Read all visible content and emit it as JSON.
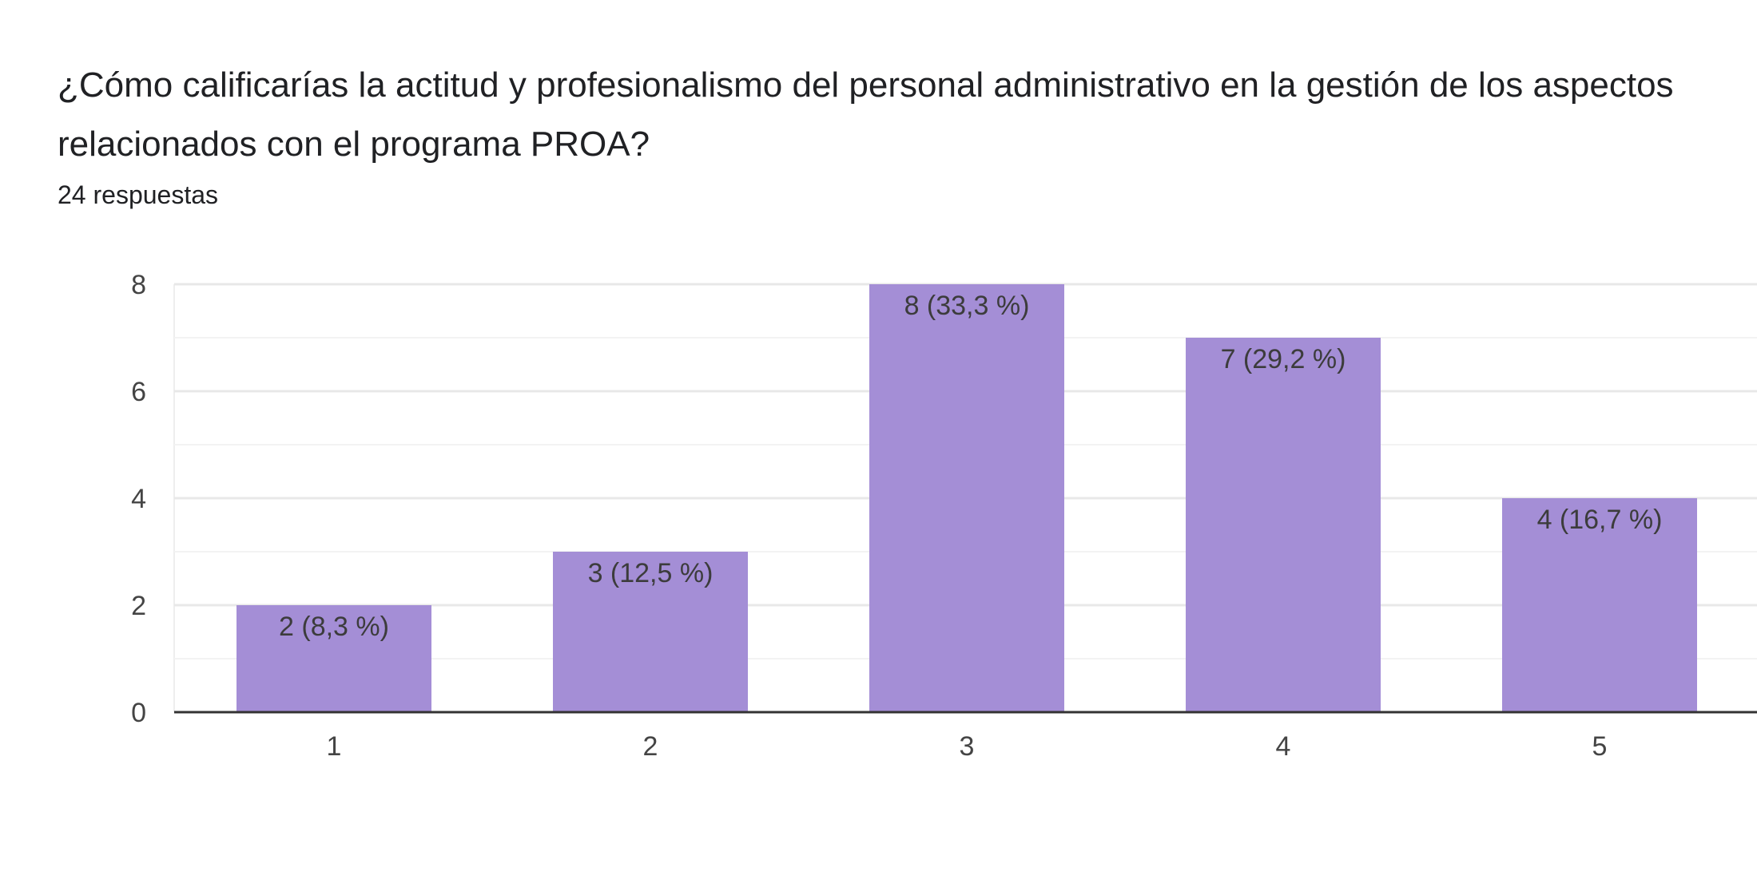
{
  "question": {
    "title": "¿Cómo calificarías la actitud y profesionalismo del personal administrativo en la gestión de los aspectos relacionados con el programa PROA?",
    "responses": "24 respuestas"
  },
  "chart_data": {
    "type": "bar",
    "categories": [
      "1",
      "2",
      "3",
      "4",
      "5"
    ],
    "values": [
      2,
      3,
      8,
      7,
      4
    ],
    "data_labels": [
      "2 (8,3 %)",
      "3 (12,5 %)",
      "8 (33,3 %)",
      "7 (29,2 %)",
      "4 (16,7 %)"
    ],
    "title": "¿Cómo calificarías la actitud y profesionalismo del personal administrativo en la gestión de los aspectos relacionados con el programa PROA?",
    "xlabel": "",
    "ylabel": "",
    "ylim": [
      0,
      8
    ],
    "yticks": [
      0,
      2,
      4,
      6,
      8
    ],
    "grid": true,
    "bar_color": "#a48ed6"
  }
}
